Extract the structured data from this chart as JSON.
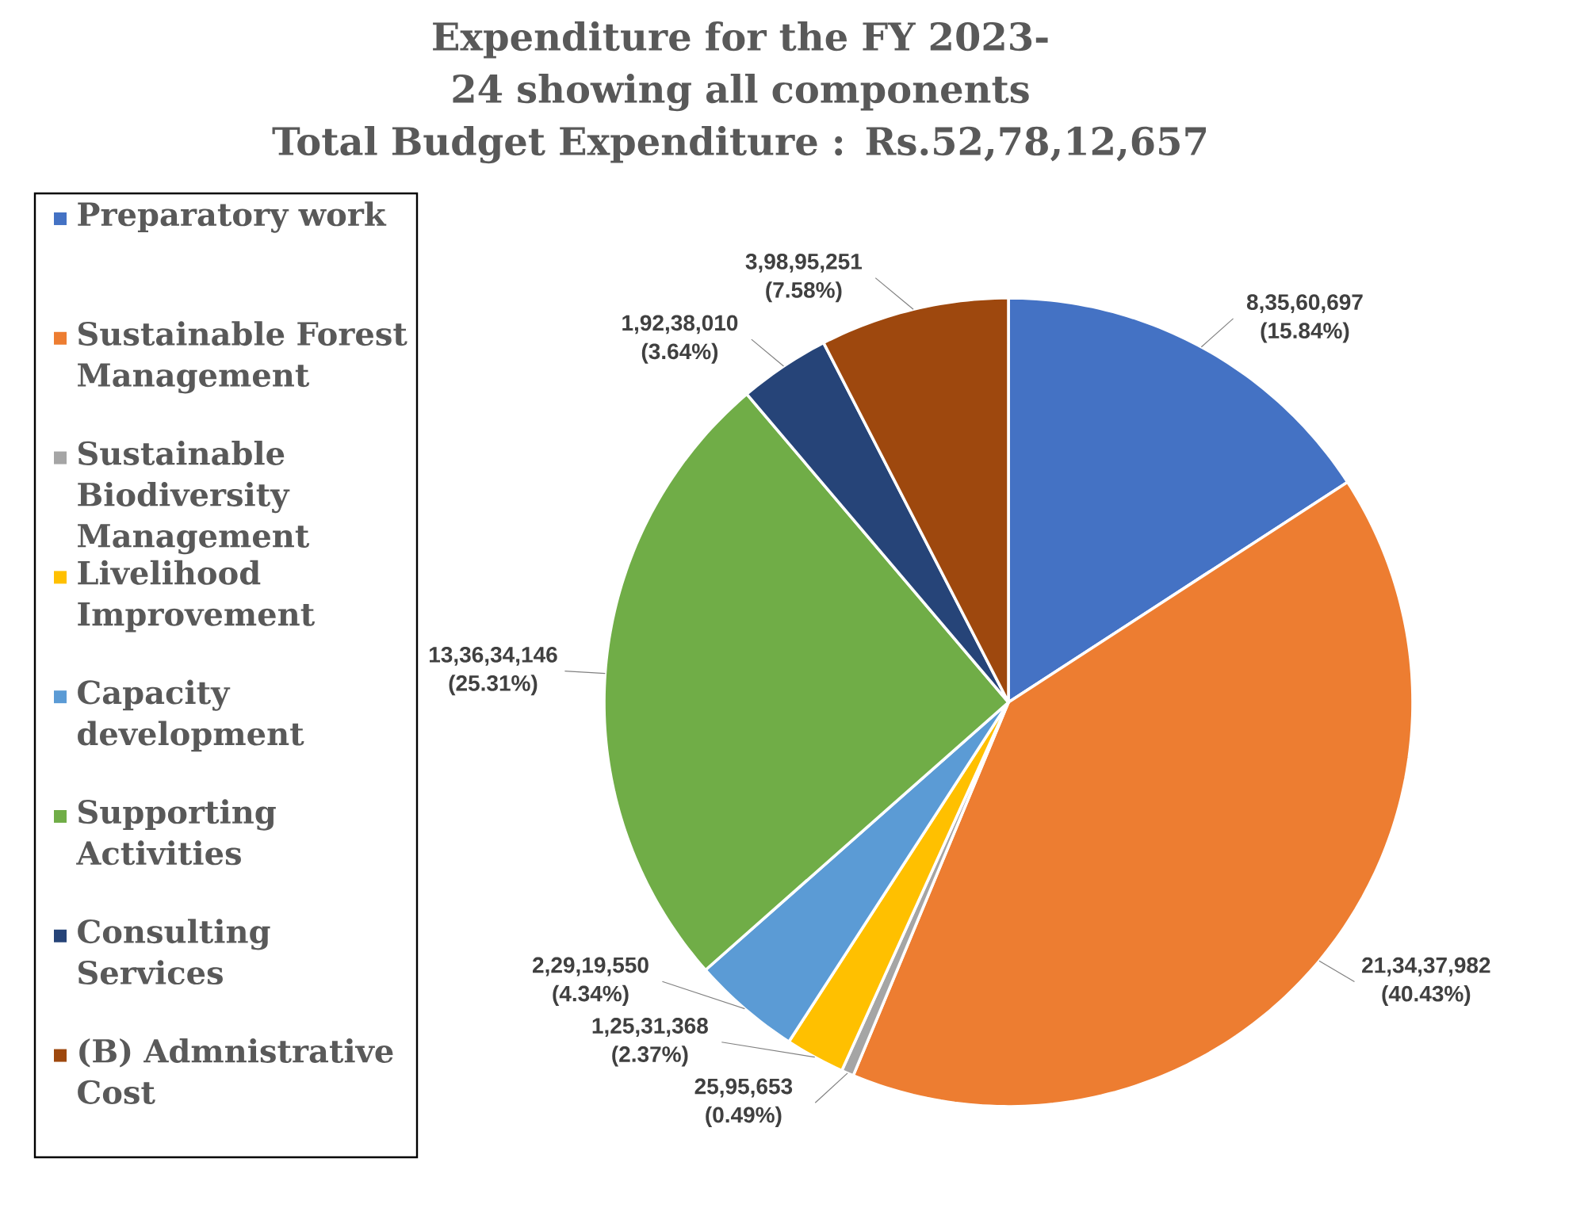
{
  "chart_data": {
    "type": "pie",
    "title": "Expenditure for the FY 2023-24 showing all components",
    "subtitle": "Total Budget Expenditure : Rs.52,78,12,657",
    "categories": [
      "Preparatory work",
      "Sustainable Forest Management",
      "Sustainable Biodiversity Management",
      "Livelihood Improvement",
      "Capacity development",
      "Supporting Activities",
      "Consulting Services",
      "(B) Admnistrative Cost"
    ],
    "values": [
      83560697,
      213437982,
      2595653,
      12531368,
      22919550,
      133634146,
      19238010,
      39895251
    ],
    "colors": [
      "#4472c4",
      "#ed7d31",
      "#a5a5a5",
      "#ffc000",
      "#5b9bd5",
      "#70ad47",
      "#264478",
      "#9e480e"
    ],
    "value_labels": [
      "8,35,60,697 (15.84%)",
      "21,34,37,982 (40.43%)",
      "25,95,653 (0.49%)",
      "1,25,31,368 (2.37%)",
      "2,29,19,550 (4.34%)",
      "13,36,34,146 (25.31%)",
      "1,92,38,010 (3.64%)",
      "3,98,95,251 (7.58%)"
    ],
    "legend": "left"
  }
}
